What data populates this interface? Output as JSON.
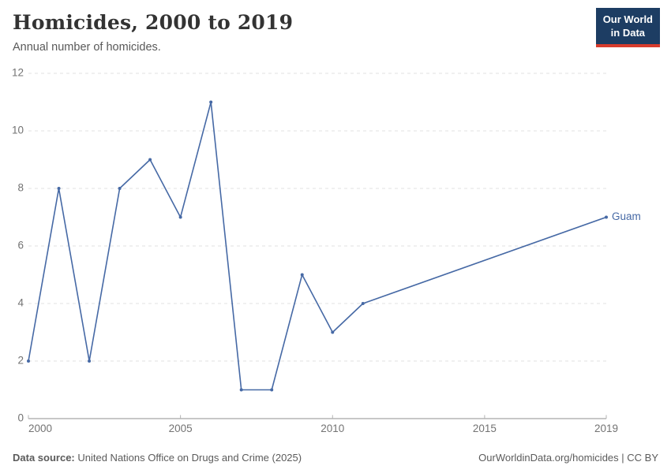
{
  "header": {
    "title": "Homicides, 2000 to 2019",
    "subtitle": "Annual number of homicides.",
    "logo_line1": "Our World",
    "logo_line2": "in Data"
  },
  "chart_data": {
    "type": "line",
    "title": "Homicides, 2000 to 2019",
    "xlabel": "",
    "ylabel": "",
    "xlim": [
      2000,
      2019
    ],
    "ylim": [
      0,
      12
    ],
    "xticks": [
      2000,
      2005,
      2010,
      2015,
      2019
    ],
    "yticks": [
      0,
      2,
      4,
      6,
      8,
      10,
      12
    ],
    "grid": "horizontal-dashed",
    "legend_position": "end-of-line-label",
    "series": [
      {
        "name": "Guam",
        "color": "#4669a5",
        "points": [
          [
            2000,
            2
          ],
          [
            2001,
            8
          ],
          [
            2002,
            2
          ],
          [
            2003,
            8
          ],
          [
            2004,
            9
          ],
          [
            2005,
            7
          ],
          [
            2006,
            11
          ],
          [
            2007,
            1
          ],
          [
            2008,
            1
          ],
          [
            2009,
            5
          ],
          [
            2010,
            3
          ],
          [
            2011,
            4
          ],
          [
            2019,
            7
          ]
        ]
      }
    ]
  },
  "footer": {
    "source_label": "Data source:",
    "source_text": " United Nations Office on Drugs and Crime (2025)",
    "link_text": "OurWorldinData.org/homicides | CC BY"
  },
  "colors": {
    "line": "#4669a5",
    "grid": "#e0e0e0",
    "axis": "#8f8f8f",
    "tick_text": "#737373",
    "logo_bg": "#1d3d63",
    "logo_red": "#d73c2d"
  }
}
